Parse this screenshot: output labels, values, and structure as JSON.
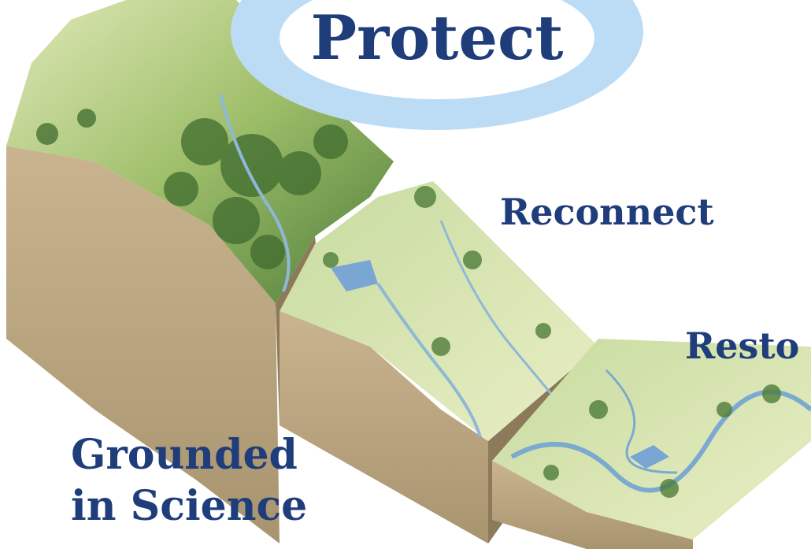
{
  "labels": {
    "protect": "Protect",
    "reconnect": "Reconnect",
    "restore": "Resto",
    "grounded_line1": "Grounded",
    "grounded_line2": "in Science"
  }
}
